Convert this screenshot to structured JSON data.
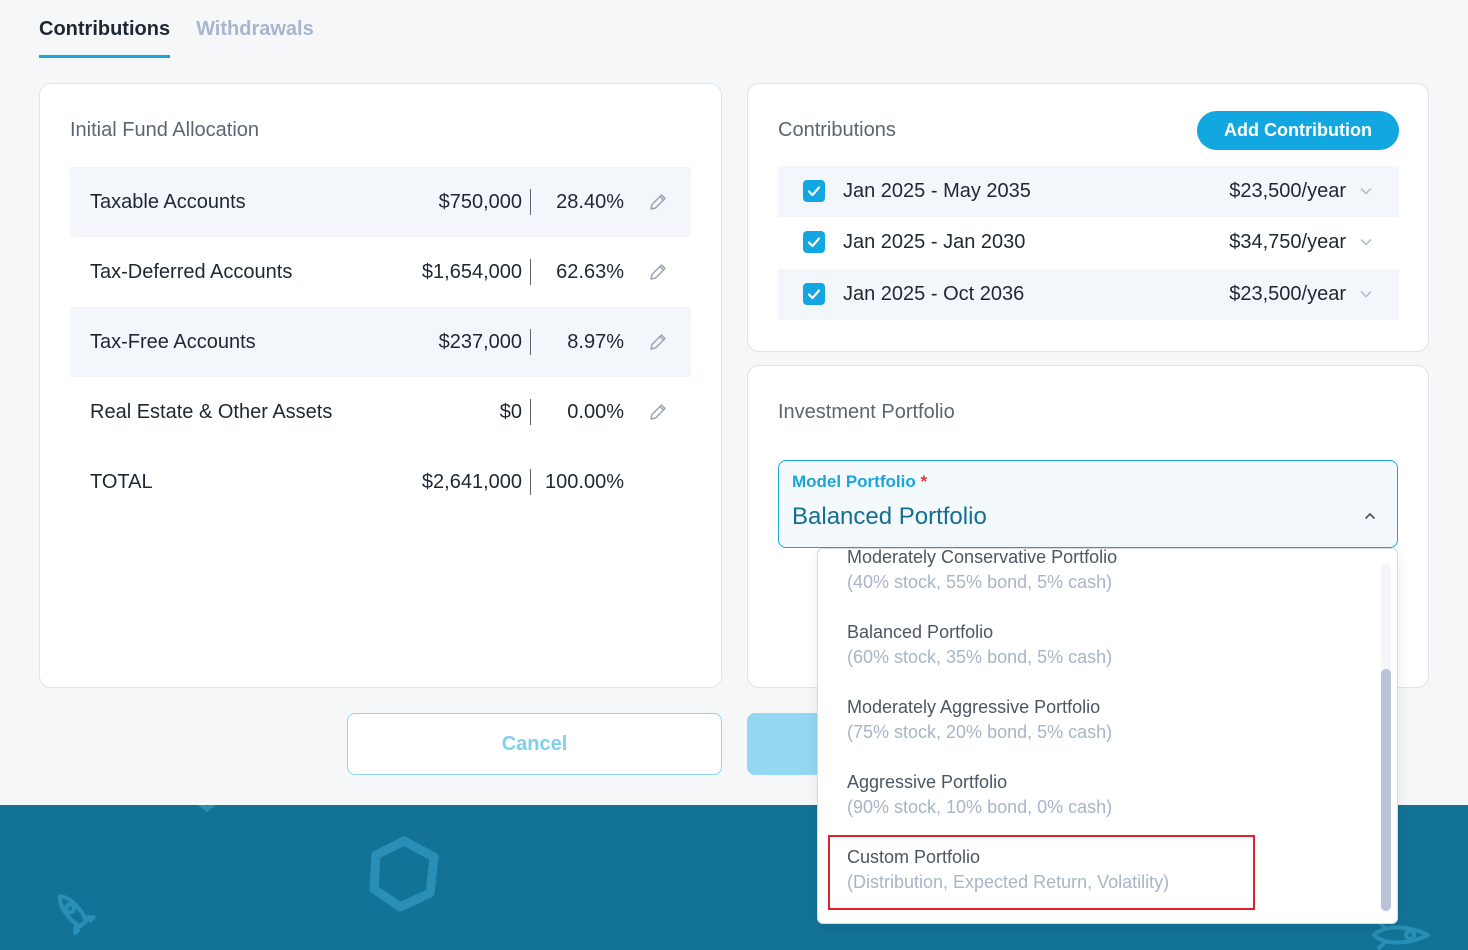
{
  "tabs": [
    {
      "label": "Contributions",
      "active": true
    },
    {
      "label": "Withdrawals",
      "active": false
    }
  ],
  "allocation": {
    "title": "Initial Fund Allocation",
    "rows": [
      {
        "name": "Taxable Accounts",
        "amount": "$750,000",
        "percent": "28.40%"
      },
      {
        "name": "Tax-Deferred Accounts",
        "amount": "$1,654,000",
        "percent": "62.63%"
      },
      {
        "name": "Tax-Free Accounts",
        "amount": "$237,000",
        "percent": "8.97%"
      },
      {
        "name": "Real Estate & Other Assets",
        "amount": "$0",
        "percent": "0.00%"
      }
    ],
    "total": {
      "name": "TOTAL",
      "amount": "$2,641,000",
      "percent": "100.00%"
    }
  },
  "contributions": {
    "title": "Contributions",
    "add_label": "Add Contribution",
    "rows": [
      {
        "period": "Jan 2025 - May 2035",
        "amount": "$23,500/year",
        "checked": true
      },
      {
        "period": "Jan 2025 - Jan 2030",
        "amount": "$34,750/year",
        "checked": true
      },
      {
        "period": "Jan 2025 - Oct 2036",
        "amount": "$23,500/year",
        "checked": true
      }
    ]
  },
  "portfolio": {
    "title": "Investment Portfolio",
    "field_label": "Model Portfolio",
    "required_mark": "*",
    "selected": "Balanced Portfolio",
    "options": [
      {
        "name": "Moderately Conservative Portfolio",
        "desc": "(40% stock, 55% bond, 5% cash)"
      },
      {
        "name": "Balanced Portfolio",
        "desc": "(60% stock, 35% bond, 5% cash)"
      },
      {
        "name": "Moderately Aggressive Portfolio",
        "desc": "(75% stock, 20% bond, 5% cash)"
      },
      {
        "name": "Aggressive Portfolio",
        "desc": "(90% stock, 10% bond, 0% cash)"
      },
      {
        "name": "Custom Portfolio",
        "desc": "(Distribution, Expected Return, Volatility)"
      }
    ]
  },
  "actions": {
    "cancel_label": "Cancel",
    "save_label": ""
  },
  "colors": {
    "accent": "#12a7e0",
    "footer": "#137397",
    "highlight": "#e41e2b"
  },
  "icons": [
    "pencil-icon",
    "checkbox-check-icon",
    "chevron-down-icon",
    "chevron-up-icon",
    "rocket-icon",
    "hexagon-icon"
  ]
}
